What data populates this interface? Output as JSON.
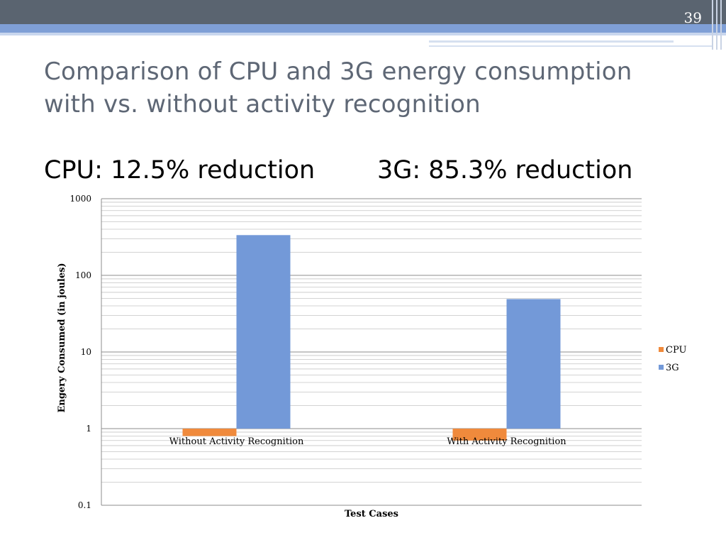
{
  "slide": {
    "page_number": "39",
    "title_line1": "Comparison of CPU and 3G energy consumption",
    "title_line2": "with vs. without activity recognition",
    "cpu_note": "CPU: 12.5% reduction",
    "g3_note": "3G: 85.3% reduction"
  },
  "colors": {
    "header_dark": "#5a6470",
    "header_blue": "#7f9fd6",
    "cpu": "#f08a3c",
    "g3": "#7399d8"
  },
  "chart_data": {
    "type": "bar",
    "scale": "log",
    "categories": [
      "Without Activity Recognition",
      "With Activity Recognition"
    ],
    "series": [
      {
        "name": "CPU",
        "values": [
          0.8,
          0.7
        ],
        "color": "#f08a3c"
      },
      {
        "name": "3G",
        "values": [
          335,
          49
        ],
        "color": "#7399d8"
      }
    ],
    "ylim": [
      0.1,
      1000
    ],
    "yticks": [
      "0.1",
      "1",
      "10",
      "100",
      "1000"
    ],
    "xlabel": "Test Cases",
    "ylabel": "Engery Consumed (in joules)",
    "grid": true,
    "legend": "right"
  }
}
